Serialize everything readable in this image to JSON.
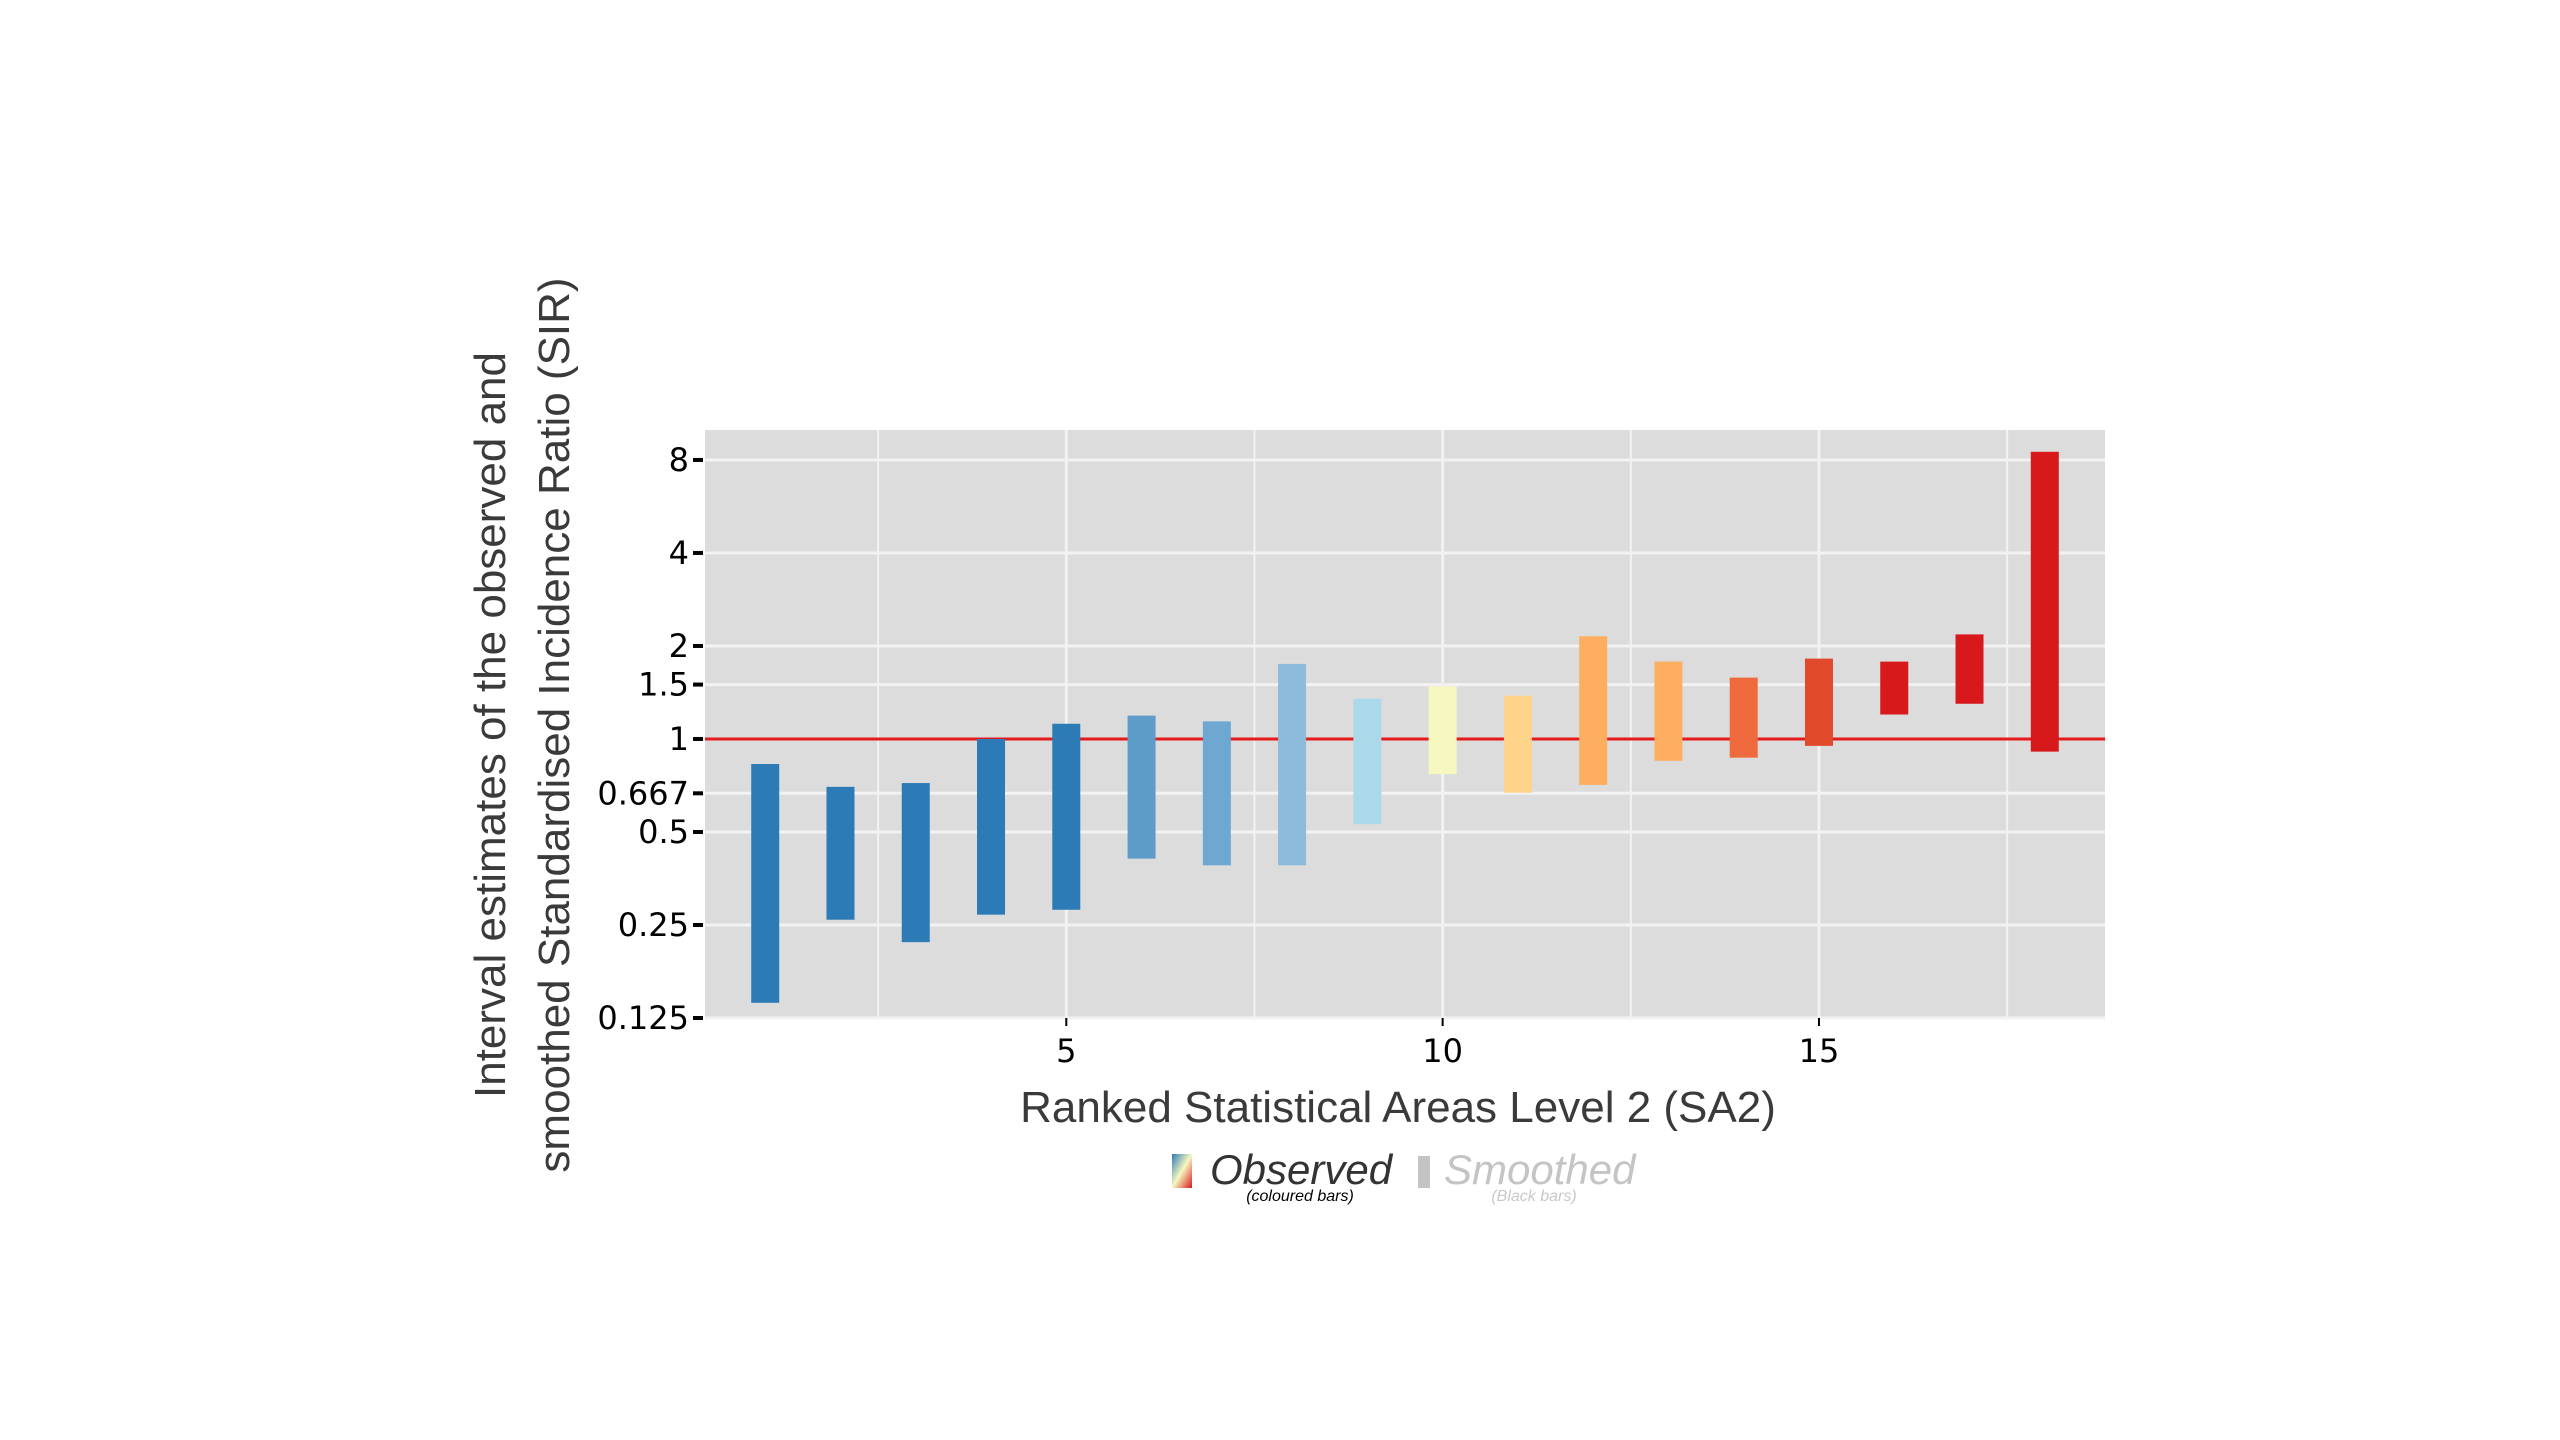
{
  "chart_data": {
    "type": "interval",
    "xlabel": "Ranked Statistical Areas Level 2 (SA2)",
    "ylabel_lines": [
      "Interval estimates of the observed and",
      "smoothed Standardised Incidence Ratio (SIR)"
    ],
    "y_scale": "log2",
    "ylim": [
      0.125,
      10
    ],
    "xlim": [
      0.2,
      18.8
    ],
    "x_ticks": [
      5,
      10,
      15
    ],
    "x_tick_labels": [
      "5",
      "10",
      "15"
    ],
    "y_ticks": [
      0.125,
      0.25,
      0.5,
      0.667,
      1,
      1.5,
      2,
      4,
      8
    ],
    "y_tick_labels": [
      "0.125",
      "0.25",
      "0.5",
      "0.667",
      "1",
      "1.5",
      "2",
      "4",
      "8"
    ],
    "reference_line": {
      "y": 1,
      "color": "#e41a1c"
    },
    "intervals": [
      {
        "rank": 1,
        "lower": 0.14,
        "upper": 0.83,
        "color": "#2c7bb6"
      },
      {
        "rank": 2,
        "lower": 0.26,
        "upper": 0.7,
        "color": "#2c7bb6"
      },
      {
        "rank": 3,
        "lower": 0.22,
        "upper": 0.72,
        "color": "#2c7bb6"
      },
      {
        "rank": 4,
        "lower": 0.27,
        "upper": 1.0,
        "color": "#2c7bb6"
      },
      {
        "rank": 5,
        "lower": 0.28,
        "upper": 1.12,
        "color": "#2c7bb6"
      },
      {
        "rank": 6,
        "lower": 0.41,
        "upper": 1.19,
        "color": "#5d9cc9"
      },
      {
        "rank": 7,
        "lower": 0.39,
        "upper": 1.14,
        "color": "#6ea8d2"
      },
      {
        "rank": 8,
        "lower": 0.39,
        "upper": 1.75,
        "color": "#8dbbdc"
      },
      {
        "rank": 9,
        "lower": 0.53,
        "upper": 1.35,
        "color": "#abd9e9"
      },
      {
        "rank": 10,
        "lower": 0.77,
        "upper": 1.48,
        "color": "#f7f7c0"
      },
      {
        "rank": 11,
        "lower": 0.67,
        "upper": 1.38,
        "color": "#fed38a"
      },
      {
        "rank": 12,
        "lower": 0.71,
        "upper": 2.15,
        "color": "#fdae61"
      },
      {
        "rank": 13,
        "lower": 0.85,
        "upper": 1.78,
        "color": "#fdae61"
      },
      {
        "rank": 14,
        "lower": 0.87,
        "upper": 1.58,
        "color": "#ef6b3e"
      },
      {
        "rank": 15,
        "lower": 0.95,
        "upper": 1.82,
        "color": "#e04a2b"
      },
      {
        "rank": 16,
        "lower": 1.2,
        "upper": 1.78,
        "color": "#d7191c"
      },
      {
        "rank": 17,
        "lower": 1.3,
        "upper": 2.18,
        "color": "#d7191c"
      },
      {
        "rank": 18,
        "lower": 0.91,
        "upper": 8.5,
        "color": "#d7191c"
      }
    ]
  },
  "legend": {
    "observed": {
      "label": "Observed",
      "sub": "(coloured bars)",
      "gradient": [
        "#2c7bb6",
        "#f7f7c0",
        "#d7191c"
      ]
    },
    "smoothed": {
      "label": "Smoothed",
      "sub": "(Black bars)",
      "swatch_color": "#c4c4c4"
    }
  },
  "colors": {
    "panel_bg": "#dcdcdc",
    "grid": "#f2f2f2",
    "subtitle_text": "#000000",
    "smoothed_sub_text": "#c8c8c8"
  }
}
